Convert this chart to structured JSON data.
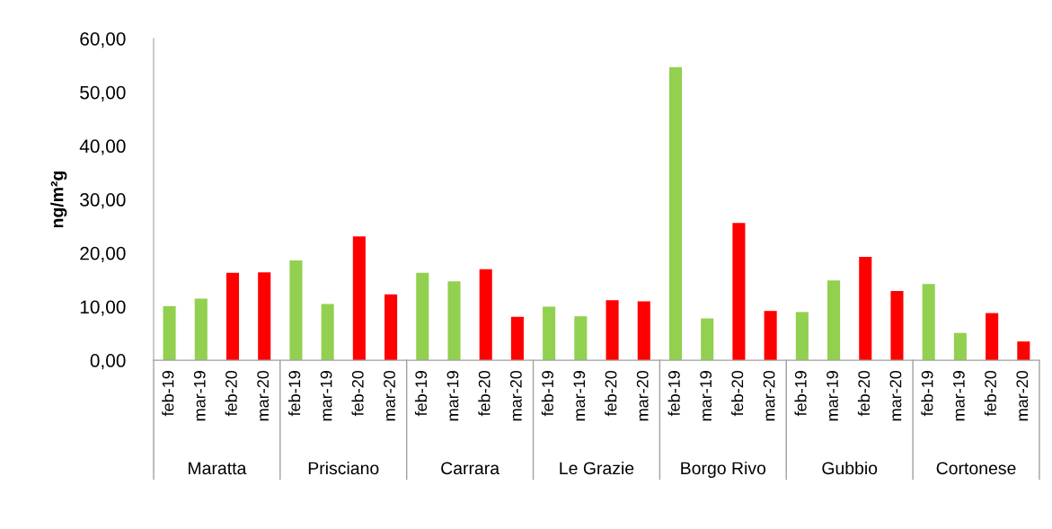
{
  "chart_data": {
    "type": "bar",
    "ylabel": "ng/m²g",
    "categories": [
      "feb-19",
      "mar-19",
      "feb-20",
      "mar-20",
      "feb-19",
      "mar-19",
      "feb-20",
      "mar-20",
      "feb-19",
      "mar-19",
      "feb-20",
      "mar-20",
      "feb-19",
      "mar-19",
      "feb-20",
      "mar-20",
      "feb-19",
      "mar-19",
      "feb-20",
      "mar-20",
      "feb-19",
      "mar-19",
      "feb-20",
      "mar-20",
      "feb-19",
      "mar-19",
      "feb-20",
      "mar-20"
    ],
    "values": [
      10.1,
      11.5,
      16.3,
      16.4,
      18.6,
      10.5,
      23.1,
      12.3,
      16.3,
      14.7,
      17.0,
      8.1,
      10.0,
      8.2,
      11.2,
      11.0,
      54.7,
      7.8,
      25.6,
      9.2,
      9.0,
      14.9,
      19.3,
      12.9,
      14.2,
      5.1,
      8.8,
      3.5
    ],
    "colors": [
      "#92d050",
      "#92d050",
      "#ff0000",
      "#ff0000",
      "#92d050",
      "#92d050",
      "#ff0000",
      "#ff0000",
      "#92d050",
      "#92d050",
      "#ff0000",
      "#ff0000",
      "#92d050",
      "#92d050",
      "#ff0000",
      "#ff0000",
      "#92d050",
      "#92d050",
      "#ff0000",
      "#ff0000",
      "#92d050",
      "#92d050",
      "#ff0000",
      "#ff0000",
      "#92d050",
      "#92d050",
      "#ff0000",
      "#ff0000"
    ],
    "annotations": [
      "Maratta",
      "Prisciano",
      "Carrara",
      "Le Grazie",
      "Borgo Rivo",
      "Gubbio",
      "Cortonese"
    ],
    "ylim": [
      0,
      60
    ],
    "yticks": [
      {
        "value": 0,
        "label": "0,00"
      },
      {
        "value": 10,
        "label": "10,00"
      },
      {
        "value": 20,
        "label": "20,00"
      },
      {
        "value": 30,
        "label": "30,00"
      },
      {
        "value": 40,
        "label": "40,00"
      },
      {
        "value": 50,
        "label": "50,00"
      },
      {
        "value": 60,
        "label": "60,00"
      }
    ],
    "grid": false,
    "legend": false
  }
}
